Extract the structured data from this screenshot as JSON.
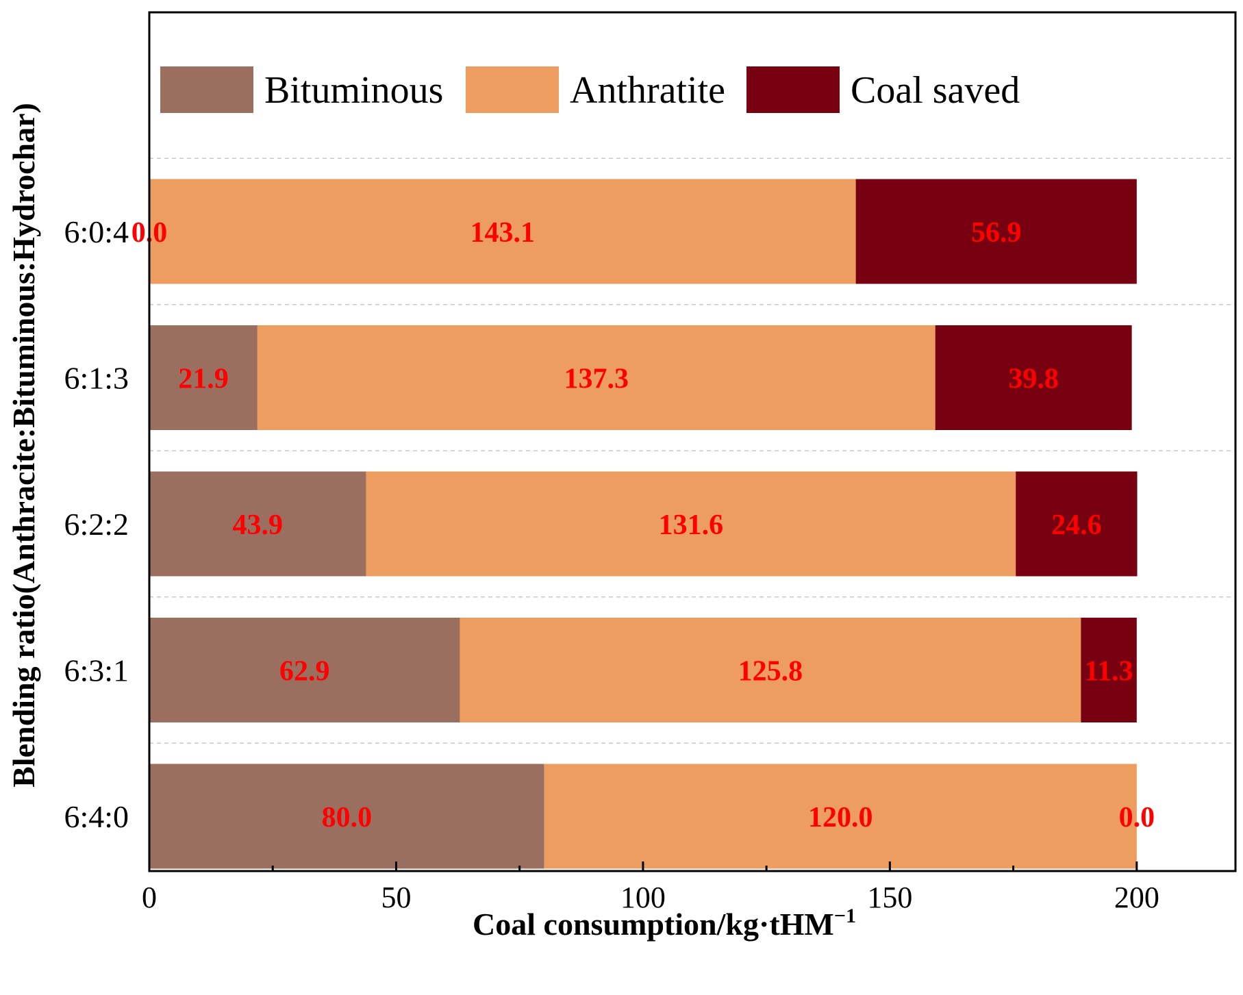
{
  "chart_data": {
    "type": "bar",
    "orientation": "horizontal",
    "stacked": true,
    "title": "",
    "xlabel": "Coal consumption/kg·tHM",
    "xlabel_superscript": "−1",
    "ylabel": "Blending ratio(Anthracite:Bituminous:Hydrochar)",
    "xlim": [
      0,
      220
    ],
    "x_ticks": [
      0,
      50,
      100,
      150,
      200
    ],
    "x_tick_labels": [
      "0",
      "50",
      "100",
      "150",
      "200"
    ],
    "categories": [
      "6:0:4",
      "6:1:3",
      "6:2:2",
      "6:3:1",
      "6:4:0"
    ],
    "series": [
      {
        "name": "Bituminous",
        "color": "#9b6f5f",
        "values": [
          0.0,
          21.9,
          43.9,
          62.9,
          80.0
        ],
        "labels": [
          "0.0",
          "21.9",
          "43.9",
          "62.9",
          "80.0"
        ]
      },
      {
        "name": "Anthratite",
        "color": "#ec9d5f",
        "values": [
          143.1,
          137.3,
          131.6,
          125.8,
          120.0
        ],
        "labels": [
          "143.1",
          "137.3",
          "131.6",
          "125.8",
          "120.0"
        ]
      },
      {
        "name": "Coal saved",
        "color": "#770011",
        "values": [
          56.9,
          39.8,
          24.6,
          11.3,
          0.0
        ],
        "labels": [
          "56.9",
          "39.8",
          "24.6",
          "11.3",
          "0.0"
        ]
      }
    ],
    "data_label_color": "#ff0000",
    "legend_position": "top",
    "grid": "horizontal dashed separators between categories"
  }
}
